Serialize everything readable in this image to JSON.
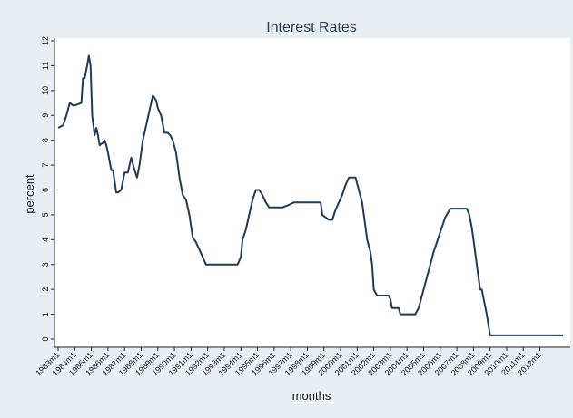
{
  "chart_data": {
    "type": "line",
    "title": "Interest Rates",
    "xlabel": "months",
    "ylabel": "percent",
    "xlim": [
      1983.0,
      2013.5
    ],
    "ylim": [
      0,
      12
    ],
    "y_ticks": [
      0,
      1,
      2,
      3,
      4,
      5,
      6,
      7,
      8,
      9,
      10,
      11,
      12
    ],
    "x_tick_labels": [
      "1983m1",
      "1984m1",
      "1985m1",
      "1986m1",
      "1987m1",
      "1988m1",
      "1989m1",
      "1990m1",
      "1991m1",
      "1992m1",
      "1993m1",
      "1994m1",
      "1995m1",
      "1996m1",
      "1997m1",
      "1998m1",
      "1999m1",
      "2000m1",
      "2001m1",
      "2002m1",
      "2003m1",
      "2004m1",
      "2005m1",
      "2006m1",
      "2007m1",
      "2008m1",
      "2009m1",
      "2010m1",
      "2011m1",
      "2012m1"
    ],
    "x_tick_values": [
      1983,
      1984,
      1985,
      1986,
      1987,
      1988,
      1989,
      1990,
      1991,
      1992,
      1993,
      1994,
      1995,
      1996,
      1997,
      1998,
      1999,
      2000,
      2001,
      2002,
      2003,
      2004,
      2005,
      2006,
      2007,
      2008,
      2009,
      2010,
      2011,
      2012
    ],
    "grid": false,
    "series": [
      {
        "color": "#1f3b57",
        "x": [
          1983.0,
          1983.3,
          1983.5,
          1983.7,
          1983.9,
          1984.0,
          1984.4,
          1984.5,
          1984.6,
          1984.75,
          1984.85,
          1984.95,
          1985.05,
          1985.2,
          1985.3,
          1985.4,
          1985.5,
          1985.7,
          1985.8,
          1985.9,
          1986.0,
          1986.2,
          1986.3,
          1986.5,
          1986.6,
          1986.8,
          1987.0,
          1987.2,
          1987.4,
          1987.6,
          1987.75,
          1987.9,
          1988.1,
          1988.3,
          1988.5,
          1988.7,
          1988.9,
          1989.0,
          1989.2,
          1989.4,
          1989.6,
          1989.75,
          1989.9,
          1990.1,
          1990.3,
          1990.5,
          1990.7,
          1990.9,
          1991.1,
          1991.3,
          1991.5,
          1991.7,
          1991.9,
          1992.1,
          1992.3,
          1992.5,
          1992.7,
          1992.9,
          1993.2,
          1993.5,
          1993.8,
          1994.0,
          1994.1,
          1994.3,
          1994.5,
          1994.7,
          1994.9,
          1995.1,
          1995.3,
          1995.5,
          1995.7,
          1996.0,
          1996.5,
          1996.9,
          1997.2,
          1997.5,
          1998.0,
          1998.5,
          1998.8,
          1998.9,
          1999.3,
          1999.5,
          1999.7,
          1999.9,
          2000.1,
          2000.3,
          2000.5,
          2000.9,
          2001.1,
          2001.3,
          2001.5,
          2001.6,
          2001.8,
          2001.9,
          2002.0,
          2002.2,
          2002.5,
          2002.9,
          2003.0,
          2003.1,
          2003.5,
          2003.6,
          2004.0,
          2004.5,
          2004.7,
          2005.0,
          2005.3,
          2005.6,
          2006.0,
          2006.3,
          2006.6,
          2006.8,
          2007.0,
          2007.3,
          2007.6,
          2007.75,
          2007.9,
          2008.0,
          2008.2,
          2008.4,
          2008.5,
          2008.8,
          2009.0,
          2009.5,
          2010.0,
          2011.0,
          2012.0,
          2013.4
        ],
        "y": [
          8.5,
          8.6,
          9.0,
          9.5,
          9.4,
          9.4,
          9.5,
          10.5,
          10.5,
          11.0,
          11.4,
          11.0,
          9.0,
          8.2,
          8.5,
          8.2,
          7.8,
          7.9,
          8.0,
          7.8,
          7.5,
          6.8,
          6.8,
          5.9,
          5.9,
          6.0,
          6.7,
          6.7,
          7.3,
          6.8,
          6.5,
          7.0,
          8.0,
          8.6,
          9.2,
          9.8,
          9.6,
          9.3,
          9.0,
          8.3,
          8.3,
          8.2,
          8.0,
          7.5,
          6.5,
          5.8,
          5.6,
          5.0,
          4.1,
          3.9,
          3.6,
          3.3,
          3.0,
          3.0,
          3.0,
          3.0,
          3.0,
          3.0,
          3.0,
          3.0,
          3.0,
          3.3,
          4.0,
          4.4,
          5.0,
          5.6,
          6.0,
          6.0,
          5.8,
          5.5,
          5.3,
          5.3,
          5.3,
          5.4,
          5.5,
          5.5,
          5.5,
          5.5,
          5.5,
          5.0,
          4.8,
          4.8,
          5.2,
          5.5,
          5.8,
          6.2,
          6.5,
          6.5,
          6.0,
          5.5,
          4.5,
          4.0,
          3.5,
          3.0,
          2.0,
          1.75,
          1.75,
          1.75,
          1.6,
          1.25,
          1.25,
          1.0,
          1.0,
          1.0,
          1.25,
          2.0,
          2.75,
          3.5,
          4.3,
          4.9,
          5.25,
          5.25,
          5.25,
          5.25,
          5.25,
          5.0,
          4.5,
          4.0,
          3.0,
          2.0,
          2.0,
          1.0,
          0.15,
          0.15,
          0.15,
          0.15,
          0.15,
          0.15
        ]
      }
    ]
  }
}
